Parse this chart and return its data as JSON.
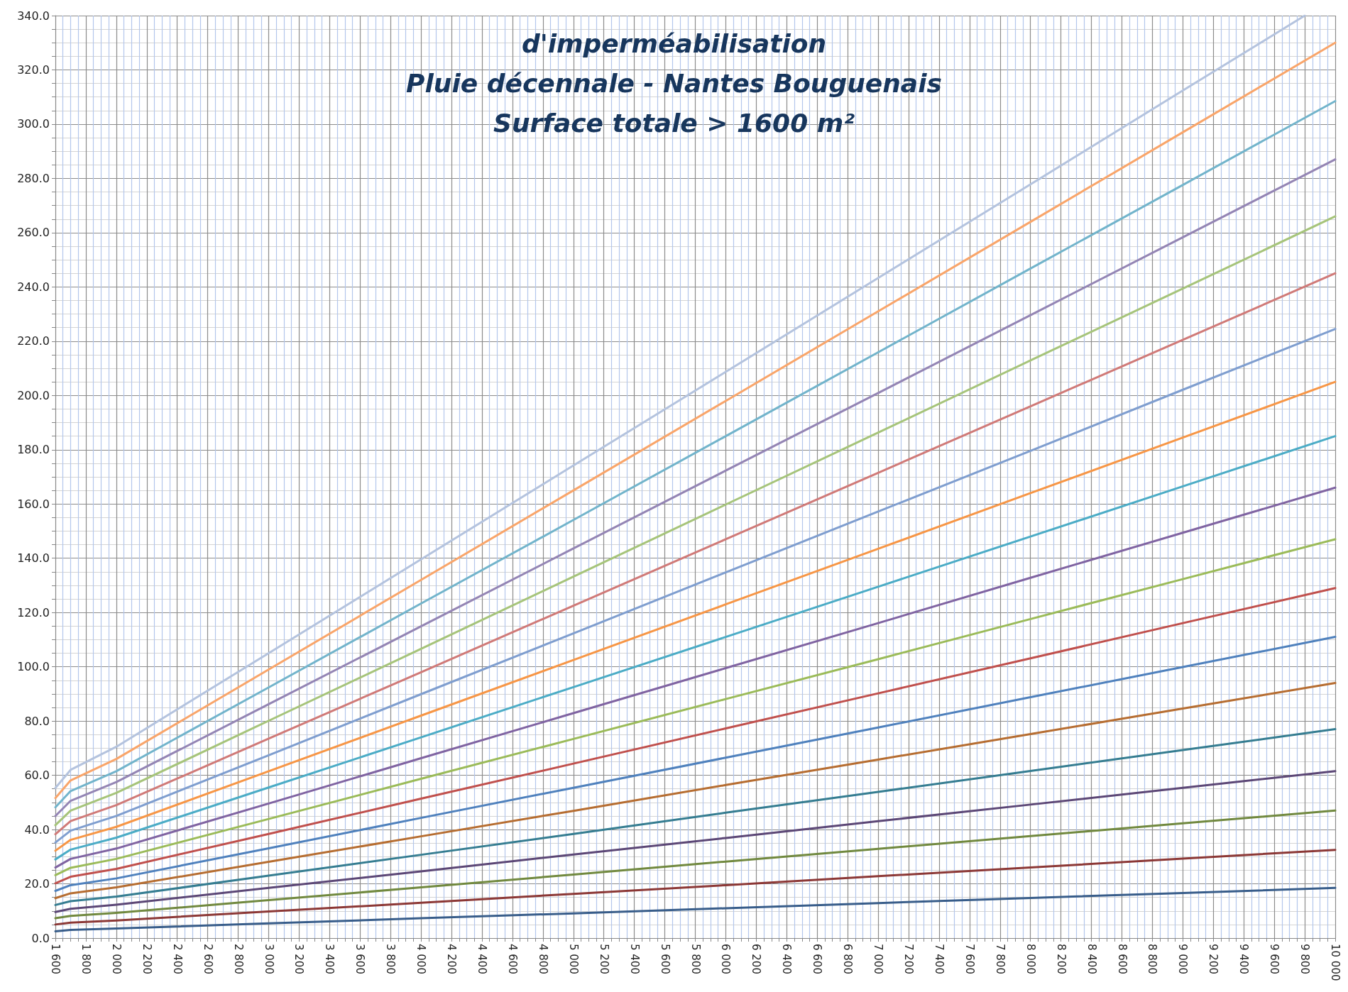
{
  "chart_data": {
    "type": "line",
    "title": "d'imperméabilisation\nPluie décennale - Nantes Bouguenais\nSurface totale > 1600 m²",
    "x": [
      1600,
      1700,
      2000,
      3000,
      4000,
      5000,
      6000,
      7000,
      8000,
      9000,
      10000
    ],
    "xlim": [
      1600,
      10000
    ],
    "xticks": [
      {
        "value": 1600,
        "label": "1 600"
      },
      {
        "value": 1650,
        "label": null
      },
      {
        "value": 1700,
        "label": null
      },
      {
        "value": 1750,
        "label": null
      },
      {
        "value": 1800,
        "label": "1 800"
      },
      {
        "value": 1850,
        "label": null
      },
      {
        "value": 1900,
        "label": null
      },
      {
        "value": 1950,
        "label": null
      },
      {
        "value": 2000,
        "label": "2 000"
      },
      {
        "value": 2050,
        "label": null
      },
      {
        "value": 2100,
        "label": null
      },
      {
        "value": 2150,
        "label": null
      },
      {
        "value": 2200,
        "label": "2 200"
      },
      {
        "value": 2250,
        "label": null
      },
      {
        "value": 2300,
        "label": null
      },
      {
        "value": 2350,
        "label": null
      },
      {
        "value": 2400,
        "label": "2 400"
      },
      {
        "value": 2450,
        "label": null
      },
      {
        "value": 2500,
        "label": null
      },
      {
        "value": 2550,
        "label": null
      },
      {
        "value": 2600,
        "label": "2 600"
      },
      {
        "value": 2650,
        "label": null
      },
      {
        "value": 2700,
        "label": null
      },
      {
        "value": 2750,
        "label": null
      },
      {
        "value": 2800,
        "label": "2 800"
      },
      {
        "value": 2850,
        "label": null
      },
      {
        "value": 2900,
        "label": null
      },
      {
        "value": 2950,
        "label": null
      },
      {
        "value": 3000,
        "label": "3 000"
      },
      {
        "value": 3050,
        "label": null
      },
      {
        "value": 3100,
        "label": null
      },
      {
        "value": 3150,
        "label": null
      },
      {
        "value": 3200,
        "label": "3 200"
      },
      {
        "value": 3250,
        "label": null
      },
      {
        "value": 3300,
        "label": null
      },
      {
        "value": 3350,
        "label": null
      },
      {
        "value": 3400,
        "label": "3 400"
      },
      {
        "value": 3450,
        "label": null
      },
      {
        "value": 3500,
        "label": null
      },
      {
        "value": 3550,
        "label": null
      },
      {
        "value": 3600,
        "label": "3 600"
      },
      {
        "value": 3650,
        "label": null
      },
      {
        "value": 3700,
        "label": null
      },
      {
        "value": 3750,
        "label": null
      },
      {
        "value": 3800,
        "label": "3 800"
      },
      {
        "value": 3850,
        "label": null
      },
      {
        "value": 3900,
        "label": null
      },
      {
        "value": 3950,
        "label": null
      },
      {
        "value": 4000,
        "label": "4 000"
      },
      {
        "value": 4050,
        "label": null
      },
      {
        "value": 4100,
        "label": null
      },
      {
        "value": 4150,
        "label": null
      },
      {
        "value": 4200,
        "label": "4 200"
      },
      {
        "value": 4250,
        "label": null
      },
      {
        "value": 4300,
        "label": null
      },
      {
        "value": 4350,
        "label": null
      },
      {
        "value": 4400,
        "label": "4 400"
      },
      {
        "value": 4450,
        "label": null
      },
      {
        "value": 4500,
        "label": null
      },
      {
        "value": 4550,
        "label": null
      },
      {
        "value": 4600,
        "label": "4 600"
      },
      {
        "value": 4650,
        "label": null
      },
      {
        "value": 4700,
        "label": null
      },
      {
        "value": 4750,
        "label": null
      },
      {
        "value": 4800,
        "label": "4 800"
      },
      {
        "value": 4850,
        "label": null
      },
      {
        "value": 4900,
        "label": null
      },
      {
        "value": 4950,
        "label": null
      },
      {
        "value": 5000,
        "label": "5 000"
      },
      {
        "value": 5050,
        "label": null
      },
      {
        "value": 5100,
        "label": null
      },
      {
        "value": 5150,
        "label": null
      },
      {
        "value": 5200,
        "label": "5 200"
      },
      {
        "value": 5250,
        "label": null
      },
      {
        "value": 5300,
        "label": null
      },
      {
        "value": 5350,
        "label": null
      },
      {
        "value": 5400,
        "label": "5 400"
      },
      {
        "value": 5450,
        "label": null
      },
      {
        "value": 5500,
        "label": null
      },
      {
        "value": 5550,
        "label": null
      },
      {
        "value": 5600,
        "label": "5 600"
      },
      {
        "value": 5650,
        "label": null
      },
      {
        "value": 5700,
        "label": null
      },
      {
        "value": 5750,
        "label": null
      },
      {
        "value": 5800,
        "label": "5 800"
      },
      {
        "value": 5850,
        "label": null
      },
      {
        "value": 5900,
        "label": null
      },
      {
        "value": 5950,
        "label": null
      },
      {
        "value": 6000,
        "label": "6 000"
      },
      {
        "value": 6050,
        "label": null
      },
      {
        "value": 6100,
        "label": null
      },
      {
        "value": 6150,
        "label": null
      },
      {
        "value": 6200,
        "label": "6 200"
      },
      {
        "value": 6250,
        "label": null
      },
      {
        "value": 6300,
        "label": null
      },
      {
        "value": 6350,
        "label": null
      },
      {
        "value": 6400,
        "label": "6 400"
      },
      {
        "value": 6450,
        "label": null
      },
      {
        "value": 6500,
        "label": null
      },
      {
        "value": 6550,
        "label": null
      },
      {
        "value": 6600,
        "label": "6 600"
      },
      {
        "value": 6650,
        "label": null
      },
      {
        "value": 6700,
        "label": null
      },
      {
        "value": 6750,
        "label": null
      },
      {
        "value": 6800,
        "label": "6 800"
      },
      {
        "value": 6850,
        "label": null
      },
      {
        "value": 6900,
        "label": null
      },
      {
        "value": 6950,
        "label": null
      },
      {
        "value": 7000,
        "label": "7 000"
      },
      {
        "value": 7050,
        "label": null
      },
      {
        "value": 7100,
        "label": null
      },
      {
        "value": 7150,
        "label": null
      },
      {
        "value": 7200,
        "label": "7 200"
      },
      {
        "value": 7250,
        "label": null
      },
      {
        "value": 7300,
        "label": null
      },
      {
        "value": 7350,
        "label": null
      },
      {
        "value": 7400,
        "label": "7 400"
      },
      {
        "value": 7450,
        "label": null
      },
      {
        "value": 7500,
        "label": null
      },
      {
        "value": 7550,
        "label": null
      },
      {
        "value": 7600,
        "label": "7 600"
      },
      {
        "value": 7650,
        "label": null
      },
      {
        "value": 7700,
        "label": null
      },
      {
        "value": 7750,
        "label": null
      },
      {
        "value": 7800,
        "label": "7 800"
      },
      {
        "value": 7850,
        "label": null
      },
      {
        "value": 7900,
        "label": null
      },
      {
        "value": 7950,
        "label": null
      },
      {
        "value": 8000,
        "label": "8 000"
      },
      {
        "value": 8050,
        "label": null
      },
      {
        "value": 8100,
        "label": null
      },
      {
        "value": 8150,
        "label": null
      },
      {
        "value": 8200,
        "label": "8 200"
      },
      {
        "value": 8250,
        "label": null
      },
      {
        "value": 8300,
        "label": null
      },
      {
        "value": 8350,
        "label": null
      },
      {
        "value": 8400,
        "label": "8 400"
      },
      {
        "value": 8450,
        "label": null
      },
      {
        "value": 8500,
        "label": null
      },
      {
        "value": 8550,
        "label": null
      },
      {
        "value": 8600,
        "label": "8 600"
      },
      {
        "value": 8650,
        "label": null
      },
      {
        "value": 8700,
        "label": null
      },
      {
        "value": 8750,
        "label": null
      },
      {
        "value": 8800,
        "label": "8 800"
      },
      {
        "value": 8850,
        "label": null
      },
      {
        "value": 8900,
        "label": null
      },
      {
        "value": 8950,
        "label": null
      },
      {
        "value": 9000,
        "label": "9 000"
      },
      {
        "value": 9050,
        "label": null
      },
      {
        "value": 9100,
        "label": null
      },
      {
        "value": 9150,
        "label": null
      },
      {
        "value": 9200,
        "label": "9 200"
      },
      {
        "value": 9250,
        "label": null
      },
      {
        "value": 9300,
        "label": null
      },
      {
        "value": 9350,
        "label": null
      },
      {
        "value": 9400,
        "label": "9 400"
      },
      {
        "value": 9450,
        "label": null
      },
      {
        "value": 9500,
        "label": null
      },
      {
        "value": 9550,
        "label": null
      },
      {
        "value": 9600,
        "label": "9 600"
      },
      {
        "value": 9650,
        "label": null
      },
      {
        "value": 9700,
        "label": null
      },
      {
        "value": 9750,
        "label": null
      },
      {
        "value": 9800,
        "label": "9 800"
      },
      {
        "value": 9850,
        "label": null
      },
      {
        "value": 9900,
        "label": null
      },
      {
        "value": 9950,
        "label": null
      },
      {
        "value": 10000,
        "label": "10 000"
      }
    ],
    "ylim": [
      0,
      340
    ],
    "yticks": [
      {
        "value": 0,
        "label": "0.0"
      },
      {
        "value": 5,
        "label": null
      },
      {
        "value": 10,
        "label": null
      },
      {
        "value": 15,
        "label": null
      },
      {
        "value": 20,
        "label": "20.0"
      },
      {
        "value": 25,
        "label": null
      },
      {
        "value": 30,
        "label": null
      },
      {
        "value": 35,
        "label": null
      },
      {
        "value": 40,
        "label": "40.0"
      },
      {
        "value": 45,
        "label": null
      },
      {
        "value": 50,
        "label": null
      },
      {
        "value": 55,
        "label": null
      },
      {
        "value": 60,
        "label": "60.0"
      },
      {
        "value": 65,
        "label": null
      },
      {
        "value": 70,
        "label": null
      },
      {
        "value": 75,
        "label": null
      },
      {
        "value": 80,
        "label": "80.0"
      },
      {
        "value": 85,
        "label": null
      },
      {
        "value": 90,
        "label": null
      },
      {
        "value": 95,
        "label": null
      },
      {
        "value": 100,
        "label": "100.0"
      },
      {
        "value": 105,
        "label": null
      },
      {
        "value": 110,
        "label": null
      },
      {
        "value": 115,
        "label": null
      },
      {
        "value": 120,
        "label": "120.0"
      },
      {
        "value": 125,
        "label": null
      },
      {
        "value": 130,
        "label": null
      },
      {
        "value": 135,
        "label": null
      },
      {
        "value": 140,
        "label": "140.0"
      },
      {
        "value": 145,
        "label": null
      },
      {
        "value": 150,
        "label": null
      },
      {
        "value": 155,
        "label": null
      },
      {
        "value": 160,
        "label": "160.0"
      },
      {
        "value": 165,
        "label": null
      },
      {
        "value": 170,
        "label": null
      },
      {
        "value": 175,
        "label": null
      },
      {
        "value": 180,
        "label": "180.0"
      },
      {
        "value": 185,
        "label": null
      },
      {
        "value": 190,
        "label": null
      },
      {
        "value": 195,
        "label": null
      },
      {
        "value": 200,
        "label": "200.0"
      },
      {
        "value": 205,
        "label": null
      },
      {
        "value": 210,
        "label": null
      },
      {
        "value": 215,
        "label": null
      },
      {
        "value": 220,
        "label": "220.0"
      },
      {
        "value": 225,
        "label": null
      },
      {
        "value": 230,
        "label": null
      },
      {
        "value": 235,
        "label": null
      },
      {
        "value": 240,
        "label": "240.0"
      },
      {
        "value": 245,
        "label": null
      },
      {
        "value": 250,
        "label": null
      },
      {
        "value": 255,
        "label": null
      },
      {
        "value": 260,
        "label": "260.0"
      },
      {
        "value": 265,
        "label": null
      },
      {
        "value": 270,
        "label": null
      },
      {
        "value": 275,
        "label": null
      },
      {
        "value": 280,
        "label": "280.0"
      },
      {
        "value": 285,
        "label": null
      },
      {
        "value": 290,
        "label": null
      },
      {
        "value": 295,
        "label": null
      },
      {
        "value": 300,
        "label": "300.0"
      },
      {
        "value": 305,
        "label": null
      },
      {
        "value": 310,
        "label": null
      },
      {
        "value": 315,
        "label": null
      },
      {
        "value": 320,
        "label": "320.0"
      },
      {
        "value": 325,
        "label": null
      },
      {
        "value": 330,
        "label": null
      },
      {
        "value": 335,
        "label": null
      },
      {
        "value": 340,
        "label": "340.0"
      }
    ],
    "grid": true,
    "marker": "none",
    "line_style": "solid",
    "series": [
      {
        "color": "#385d8a",
        "values": [
          2.5,
          3,
          3.5,
          5.4,
          7.3,
          9.1,
          11,
          12.9,
          14.8,
          16.6,
          18.5
        ]
      },
      {
        "color": "#8c3836",
        "values": [
          5,
          5.7,
          6.5,
          9.8,
          13,
          16.3,
          19.5,
          22.8,
          26,
          29.3,
          32.5
        ]
      },
      {
        "color": "#71893f",
        "values": [
          7.3,
          8.2,
          9.3,
          14,
          18.7,
          23.4,
          28.2,
          32.9,
          37.6,
          42.3,
          47
        ]
      },
      {
        "color": "#5c4776",
        "values": [
          9.6,
          10.8,
          12.3,
          18.5,
          24.6,
          30.8,
          36.9,
          43.1,
          49.2,
          55.4,
          61.5
        ]
      },
      {
        "color": "#357d91",
        "values": [
          12.2,
          13.6,
          15.3,
          23,
          30.7,
          38.4,
          46.2,
          53.9,
          61.6,
          69.3,
          77
        ]
      },
      {
        "color": "#b66d31",
        "values": [
          14.7,
          16.5,
          18.7,
          28.1,
          37.5,
          46.9,
          56.4,
          65.8,
          75.2,
          84.6,
          94
        ]
      },
      {
        "color": "#4f81bd",
        "values": [
          17.4,
          19.5,
          22,
          33.1,
          44.3,
          55.4,
          66.5,
          77.6,
          88.8,
          99.9,
          111
        ]
      },
      {
        "color": "#c0504d",
        "values": [
          20.2,
          22.6,
          25.5,
          38.4,
          51.4,
          64.3,
          77.3,
          90.2,
          103.1,
          116.1,
          129
        ]
      },
      {
        "color": "#9bbb59",
        "values": [
          23.2,
          25.9,
          29.2,
          43.9,
          58.7,
          73.4,
          88.1,
          102.8,
          117.6,
          132.3,
          147
        ]
      },
      {
        "color": "#8064a2",
        "values": [
          26,
          29.2,
          33,
          49.6,
          66.3,
          82.9,
          99.5,
          116.1,
          132.8,
          149.4,
          166
        ]
      },
      {
        "color": "#4bacc6",
        "values": [
          29,
          32.6,
          37,
          55.5,
          74,
          92.5,
          111,
          129.5,
          148,
          166.5,
          185
        ]
      },
      {
        "color": "#f79646",
        "values": [
          32.2,
          36.2,
          41,
          61.5,
          82,
          102.5,
          123,
          143.5,
          164,
          184.5,
          205
        ]
      },
      {
        "color": "#7f9ecf",
        "values": [
          35.2,
          39.6,
          45,
          67.4,
          89.9,
          112.3,
          134.8,
          157.2,
          179.6,
          202.1,
          224.5
        ]
      },
      {
        "color": "#d07a78",
        "values": [
          38.3,
          43.1,
          49,
          73.5,
          98,
          122.5,
          147,
          171.5,
          196,
          220.5,
          245
        ]
      },
      {
        "color": "#a6c47a",
        "values": [
          41.6,
          47,
          53.5,
          80.1,
          106.6,
          133.2,
          159.8,
          186.3,
          212.9,
          239.4,
          266
        ]
      },
      {
        "color": "#9485b4",
        "values": [
          45,
          50.6,
          57.5,
          86.2,
          114.9,
          143.6,
          172.3,
          200.9,
          229.6,
          258.3,
          287
        ]
      },
      {
        "color": "#72b4cb",
        "values": [
          48.2,
          54.2,
          61.5,
          92.4,
          123.3,
          154.1,
          185,
          215.9,
          246.8,
          277.6,
          308.5
        ]
      },
      {
        "color": "#f9a56a",
        "values": [
          51.6,
          58.1,
          66,
          99,
          132,
          165,
          198,
          231,
          264,
          297,
          330
        ]
      },
      {
        "color": "#b4c3de",
        "x": [
          1600,
          1700,
          2000,
          3000,
          4000,
          5000,
          6000,
          7000,
          8000,
          9000,
          9800
        ],
        "values": [
          55.3,
          62,
          70.5,
          105,
          139.6,
          174.2,
          208.7,
          243.3,
          277.8,
          312.4,
          340
        ]
      }
    ]
  }
}
